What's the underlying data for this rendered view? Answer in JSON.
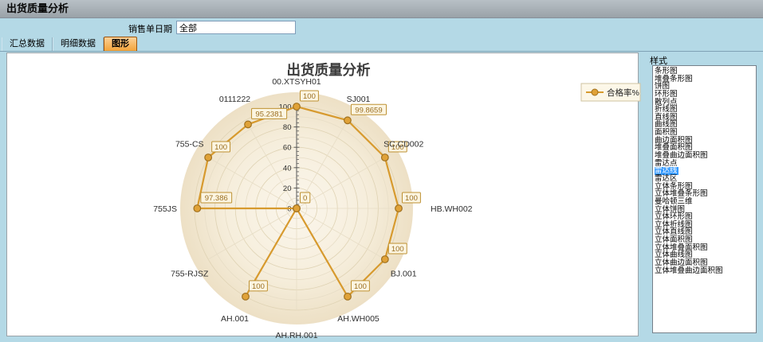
{
  "window": {
    "title": "出货质量分析"
  },
  "filter_bar": {
    "label": "销售单日期",
    "value": "全部"
  },
  "tabs": [
    {
      "label": "汇总数据",
      "selected": false
    },
    {
      "label": "明细数据",
      "selected": false
    },
    {
      "label": "图形",
      "selected": true
    }
  ],
  "style_panel": {
    "title": "样式",
    "selected": "雷达线",
    "options": [
      "条形图",
      "堆叠条形图",
      "饼图",
      "环形图",
      "散列点",
      "折线图",
      "直线图",
      "曲线图",
      "面积图",
      "曲边面积图",
      "堆叠面积图",
      "堆叠曲边面积图",
      "雷达点",
      "雷达线",
      "雷达区",
      "立体条形图",
      "立体堆叠条形图",
      "曼哈顿三维",
      "立体饼图",
      "立体环形图",
      "立体折线图",
      "立体直线图",
      "立体面积图",
      "立体堆叠面积图",
      "立体曲线图",
      "立体曲边面积图",
      "立体堆叠曲边面积图"
    ]
  },
  "ui_colors": {
    "background_blue": "#b4d9e6",
    "selected_tab_orange": "#f2a43a",
    "list_selection_blue": "#3399ff"
  },
  "chart_data": {
    "type": "radar-line",
    "title": "出货质量分析",
    "legend": [
      {
        "name": "合格率%",
        "position": "top-right"
      }
    ],
    "categories": [
      "00.XTSYH01",
      "SJ001",
      "SC.CD002",
      "HB.WH002",
      "BJ.001",
      "AH.WH005",
      "AH.RH.001",
      "AH.001",
      "755-RJSZ",
      "755JS",
      "755-CS",
      "0111222"
    ],
    "series": [
      {
        "name": "合格率%",
        "values": [
          100,
          99.8659,
          100,
          100,
          100,
          100,
          0,
          100,
          0,
          97.386,
          100,
          95.2381
        ]
      }
    ],
    "axis": {
      "min": 0,
      "max": 100,
      "major_ticks": [
        0,
        20,
        40,
        60,
        80,
        100
      ],
      "minor_step": 4,
      "ring_step": 10,
      "grid": true
    },
    "colors": {
      "line": "#D79A2E",
      "point_fill": "#E0A238",
      "point_border": "#9F701E",
      "label_bg": "#FCF5E1",
      "label_border": "#BE9133",
      "label_text": "#9A6E20",
      "grid_light": "#E7DDC6",
      "grid_dark": "#DFD3B4",
      "axis": "#5A5A5A",
      "tick_text": "#303030",
      "category_text": "#2E2E2E",
      "bg_inner": "#FBF6EC",
      "bg_mid": "#F6EEDC",
      "bg_outer": "#EDE0C5",
      "title_color": "#3B3B3B",
      "legend_bg": "#FCF7E8",
      "legend_border": "#CFC3A0"
    }
  }
}
